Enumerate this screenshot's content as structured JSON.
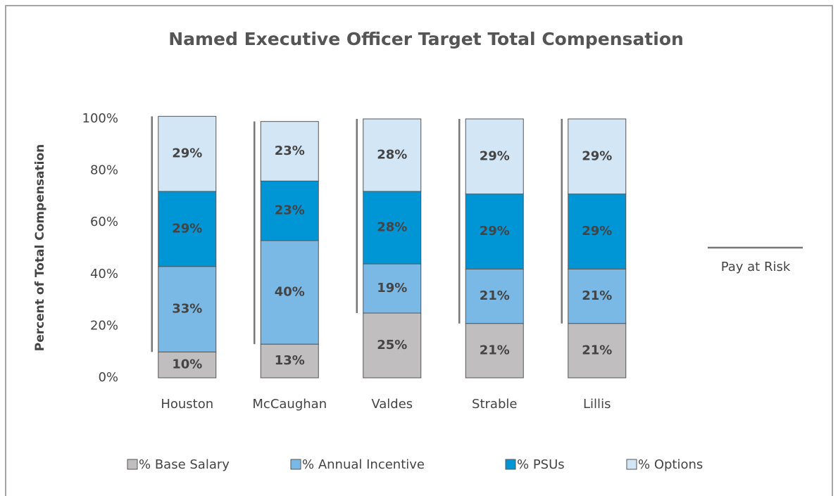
{
  "chart_data": {
    "type": "bar",
    "stacked": true,
    "title": "Named Executive Officer Target Total Compensation",
    "y_label": "Percent of Total Compensation",
    "categories": [
      "Houston",
      "McCaughan",
      "Valdes",
      "Strable",
      "Lillis"
    ],
    "series": [
      {
        "name": "% Base Salary",
        "color": "#c0bebe",
        "values": [
          10,
          13,
          25,
          21,
          21
        ],
        "value_labels": [
          "10%",
          "13%",
          "25%",
          "21%",
          "21%"
        ]
      },
      {
        "name": "% Annual Incentive",
        "color": "#7ab8e6",
        "values": [
          33,
          40,
          19,
          21,
          21
        ],
        "value_labels": [
          "33%",
          "40%",
          "19%",
          "21%",
          "21%"
        ]
      },
      {
        "name": "% PSUs",
        "color": "#0096d6",
        "values": [
          29,
          23,
          28,
          29,
          29
        ],
        "value_labels": [
          "29%",
          "23%",
          "28%",
          "29%",
          "29%"
        ]
      },
      {
        "name": "% Options",
        "color": "#d3e6f6",
        "values": [
          29,
          23,
          28,
          29,
          29
        ],
        "value_labels": [
          "29%",
          "23%",
          "28%",
          "29%",
          "29%"
        ]
      }
    ],
    "ylim": [
      0,
      100
    ],
    "yticks": [
      {
        "value": 0,
        "label": "0%"
      },
      {
        "value": 20,
        "label": "20%"
      },
      {
        "value": 40,
        "label": "40%"
      },
      {
        "value": 60,
        "label": "60%"
      },
      {
        "value": 80,
        "label": "80%"
      },
      {
        "value": 100,
        "label": "100%"
      }
    ],
    "annotation": "Pay at Risk",
    "annotation_color": "#777777"
  }
}
